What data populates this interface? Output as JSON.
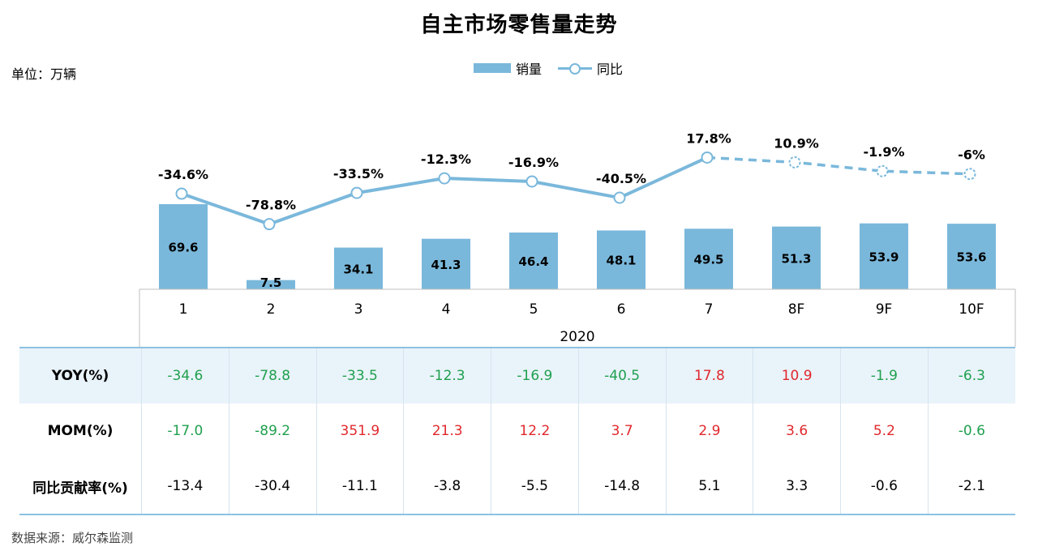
{
  "title": "自主市场零售量走势",
  "unit_label": "单位：万辆",
  "source_label": "数据来源：威尔森监测",
  "colors": {
    "bar": "#7ab8db",
    "line": "#7ab8db",
    "positive": "#e0282d",
    "negative": "#1fa04e"
  },
  "chart_data": {
    "type": "bar",
    "title": "自主市场零售量走势",
    "categories": [
      "1",
      "2",
      "3",
      "4",
      "5",
      "6",
      "7",
      "8F",
      "9F",
      "10F"
    ],
    "group_label": "2020",
    "legend_position": "top-center",
    "series": [
      {
        "name": "销量",
        "type": "bar",
        "values": [
          69.6,
          7.5,
          34.1,
          41.3,
          46.4,
          48.1,
          49.5,
          51.3,
          53.9,
          53.6
        ]
      },
      {
        "name": "同比",
        "type": "line",
        "values": [
          -34.6,
          -78.8,
          -33.5,
          -12.3,
          -16.9,
          -40.5,
          17.8,
          10.9,
          -1.9,
          -6
        ],
        "value_labels": [
          "-34.6%",
          "-78.8%",
          "-33.5%",
          "-12.3%",
          "-16.9%",
          "-40.5%",
          "17.8%",
          "10.9%",
          "-1.9%",
          "-6%"
        ],
        "forecast_from_index": 6
      }
    ]
  },
  "table": {
    "rows": [
      {
        "label": "YOY(%)",
        "values": [
          "-34.6",
          "-78.8",
          "-33.5",
          "-12.3",
          "-16.9",
          "-40.5",
          "17.8",
          "10.9",
          "-1.9",
          "-6.3"
        ],
        "colored": true
      },
      {
        "label": "MOM(%)",
        "values": [
          "-17.0",
          "-89.2",
          "351.9",
          "21.3",
          "12.2",
          "3.7",
          "2.9",
          "3.6",
          "5.2",
          "-0.6"
        ],
        "colored": true
      },
      {
        "label": "同比贡献率(%)",
        "values": [
          "-13.4",
          "-30.4",
          "-11.1",
          "-3.8",
          "-5.5",
          "-14.8",
          "5.1",
          "3.3",
          "-0.6",
          "-2.1"
        ],
        "colored": false
      }
    ]
  }
}
